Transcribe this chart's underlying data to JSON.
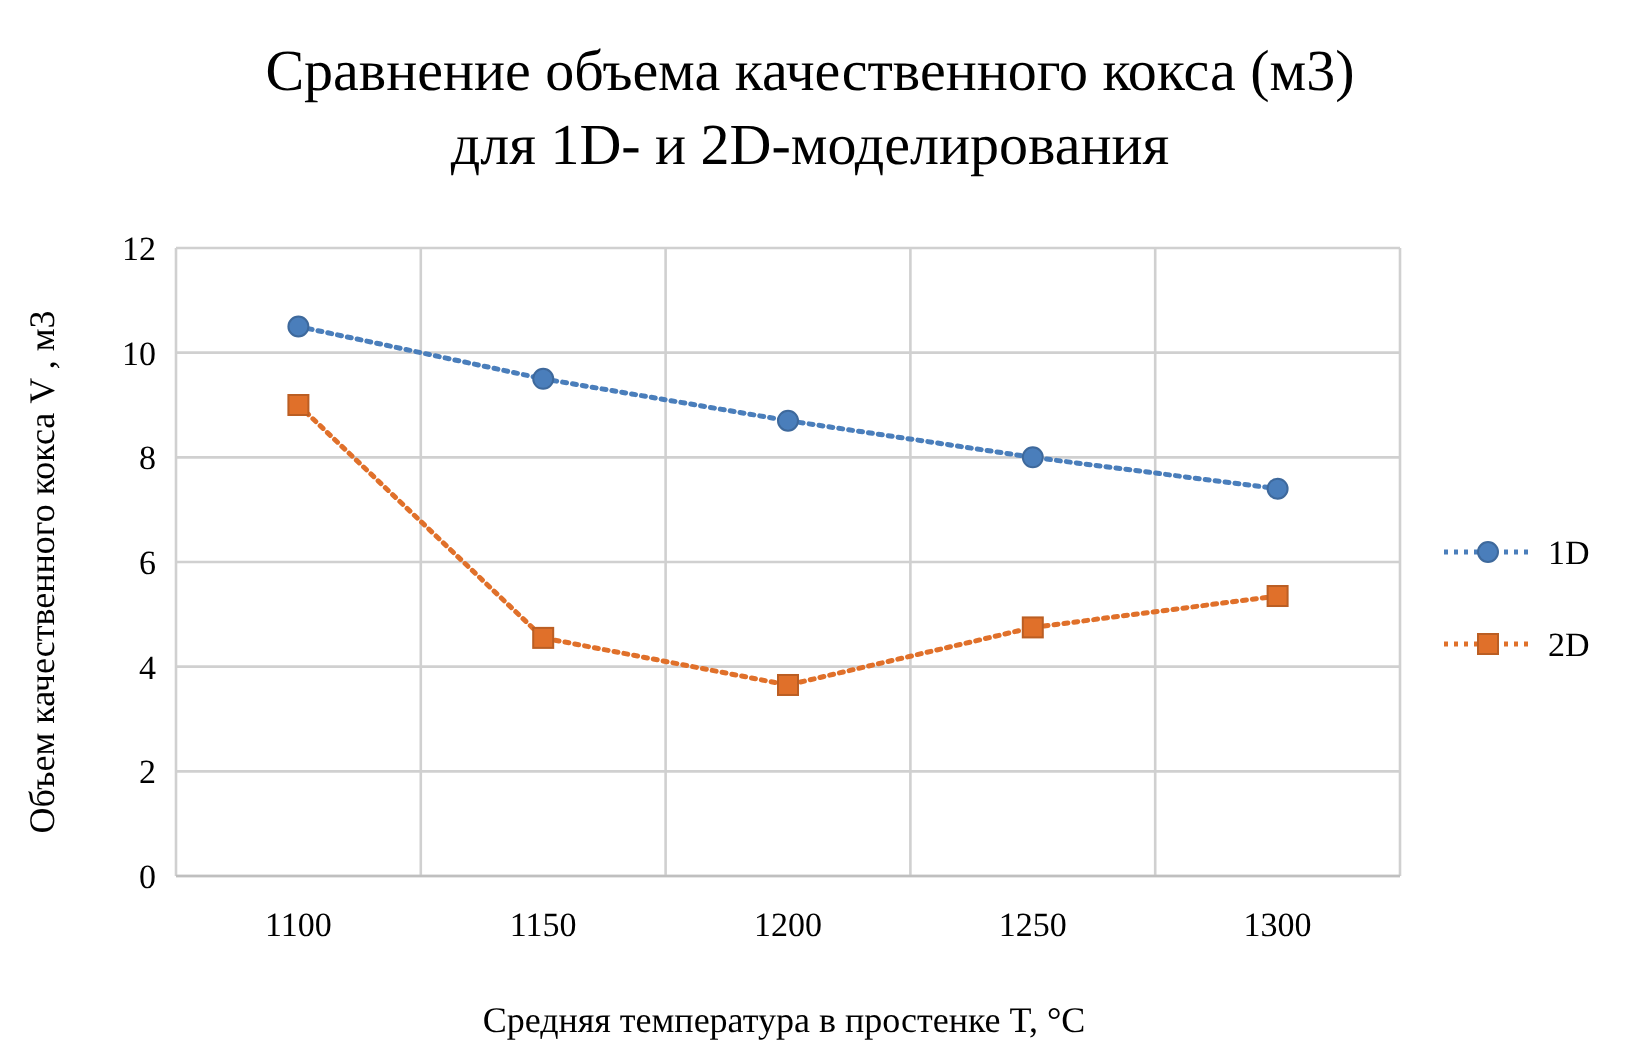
{
  "chart_data": {
    "type": "line",
    "title": "Сравнение объема качественного кокса (м3)\nдля 1D- и 2D-моделирования",
    "xlabel": "Средняя температура  в простенке T, °C",
    "ylabel": "Объем качественного кокса V , м3",
    "categories": [
      "1100",
      "1150",
      "1200",
      "1250",
      "1300"
    ],
    "series": [
      {
        "name": "1D",
        "color": "#4a7ebb",
        "values": [
          10.5,
          9.5,
          8.7,
          8.0,
          7.4
        ],
        "marker": "circle"
      },
      {
        "name": "2D",
        "color": "#e0702a",
        "values": [
          9.0,
          4.55,
          3.65,
          4.75,
          5.35
        ],
        "marker": "square"
      }
    ],
    "ylim": [
      0,
      12
    ],
    "yticks": [
      0,
      2,
      4,
      6,
      8,
      10,
      12
    ],
    "grid": true,
    "legend": "right",
    "line_style": "dotted"
  }
}
